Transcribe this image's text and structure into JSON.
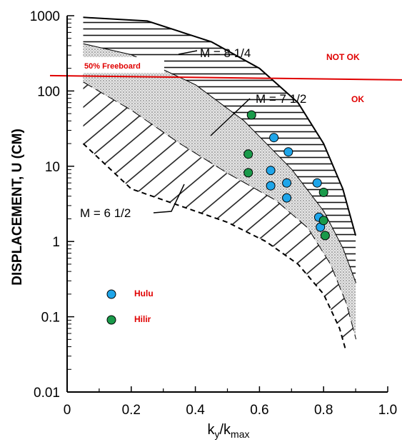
{
  "chart_data": {
    "type": "scatter",
    "title": "",
    "xlabel_main": "k",
    "xlabel_sub1": "y",
    "xlabel_sep": "/k",
    "xlabel_sub2": "max",
    "ylabel": "DISPLACEMENT, U (CM)",
    "x_ticks": [
      "0",
      "0.2",
      "0.4",
      "0.6",
      "0.8",
      "1.0"
    ],
    "x_tick_values": [
      0,
      0.2,
      0.4,
      0.6,
      0.8,
      1.0
    ],
    "y_ticks": [
      "0.01",
      "0.1",
      "1",
      "10",
      "100",
      "1000"
    ],
    "y_tick_values": [
      0.01,
      0.1,
      1,
      10,
      100,
      1000
    ],
    "xlim": [
      0,
      1.0
    ],
    "ylim": [
      0.01,
      1000
    ],
    "y_scale": "log",
    "grid": false,
    "bands": [
      {
        "label": "M = 8 1/4",
        "fill": "hatch-horizontal",
        "upper": [
          [
            0.05,
            950
          ],
          [
            0.25,
            850
          ],
          [
            0.45,
            450
          ],
          [
            0.6,
            200
          ],
          [
            0.72,
            70
          ],
          [
            0.8,
            20
          ],
          [
            0.86,
            5
          ],
          [
            0.9,
            1.2
          ]
        ],
        "lower": [
          [
            0.05,
            420
          ],
          [
            0.2,
            300
          ],
          [
            0.4,
            120
          ],
          [
            0.55,
            40
          ],
          [
            0.7,
            9
          ],
          [
            0.8,
            2.5
          ],
          [
            0.86,
            0.8
          ],
          [
            0.9,
            0.28
          ]
        ]
      },
      {
        "label": "M = 7 1/2",
        "fill": "dotted",
        "upper": [
          [
            0.05,
            420
          ],
          [
            0.2,
            300
          ],
          [
            0.4,
            120
          ],
          [
            0.55,
            40
          ],
          [
            0.7,
            9
          ],
          [
            0.8,
            2.5
          ],
          [
            0.86,
            0.8
          ],
          [
            0.9,
            0.28
          ]
        ],
        "lower": [
          [
            0.05,
            130
          ],
          [
            0.2,
            55
          ],
          [
            0.35,
            20
          ],
          [
            0.5,
            8
          ],
          [
            0.65,
            3.5
          ],
          [
            0.75,
            1.5
          ],
          [
            0.82,
            0.5
          ],
          [
            0.87,
            0.15
          ],
          [
            0.9,
            0.05
          ]
        ]
      },
      {
        "label": "M = 6 1/2",
        "fill": "hatch-diagonal",
        "upper": [
          [
            0.05,
            130
          ],
          [
            0.2,
            55
          ],
          [
            0.35,
            20
          ],
          [
            0.5,
            8
          ],
          [
            0.65,
            3.5
          ],
          [
            0.75,
            1.5
          ],
          [
            0.82,
            0.5
          ],
          [
            0.87,
            0.15
          ],
          [
            0.9,
            0.05
          ]
        ],
        "lower": [
          [
            0.05,
            20
          ],
          [
            0.2,
            5
          ],
          [
            0.35,
            3
          ],
          [
            0.5,
            1.8
          ],
          [
            0.62,
            1
          ],
          [
            0.72,
            0.5
          ],
          [
            0.8,
            0.2
          ],
          [
            0.85,
            0.07
          ],
          [
            0.87,
            0.035
          ]
        ]
      }
    ],
    "threshold": {
      "label": "50% Freeboard",
      "y": 160,
      "color": "#e00000",
      "above_label": "NOT OK",
      "below_label": "OK"
    },
    "series": [
      {
        "name": "Hulu",
        "color": "#1ea5e9",
        "points": [
          [
            0.645,
            24
          ],
          [
            0.69,
            15.5
          ],
          [
            0.635,
            8.8
          ],
          [
            0.685,
            6
          ],
          [
            0.78,
            6
          ],
          [
            0.635,
            5.5
          ],
          [
            0.685,
            3.8
          ],
          [
            0.785,
            2.1
          ],
          [
            0.79,
            1.55
          ]
        ]
      },
      {
        "name": "Hilir",
        "color": "#1a9a4a",
        "points": [
          [
            0.575,
            48
          ],
          [
            0.565,
            14.5
          ],
          [
            0.565,
            8.2
          ],
          [
            0.8,
            4.5
          ],
          [
            0.8,
            1.9
          ],
          [
            0.805,
            1.2
          ]
        ]
      }
    ],
    "legend_placement": "lower-left"
  }
}
